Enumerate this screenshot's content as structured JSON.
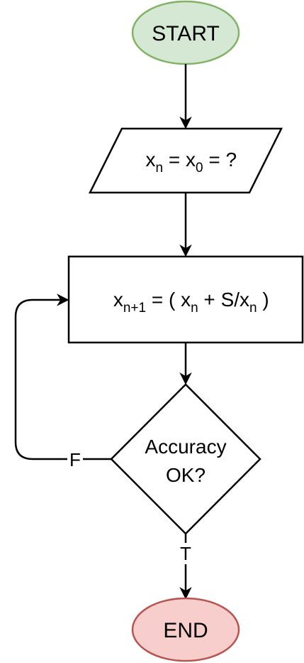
{
  "nodes": {
    "start": {
      "label": "START",
      "fill": "#d5e8d4",
      "stroke": "#82b366"
    },
    "input": {
      "x": "x",
      "n": "n",
      "eq1": " = x",
      "zero": "0",
      "eq2": " = ?"
    },
    "process": {
      "x1": "x",
      "sub1": "n+1",
      "mid": " = ( x",
      "sub2": "n",
      "plus": " + S/x",
      "sub3": "n",
      "close": " )"
    },
    "decision": {
      "line1": "Accuracy",
      "line2": "OK?"
    },
    "end": {
      "label": "END",
      "fill": "#f8cecc",
      "stroke": "#b85450"
    }
  },
  "edges": {
    "false_label": "F",
    "true_label": "T"
  }
}
